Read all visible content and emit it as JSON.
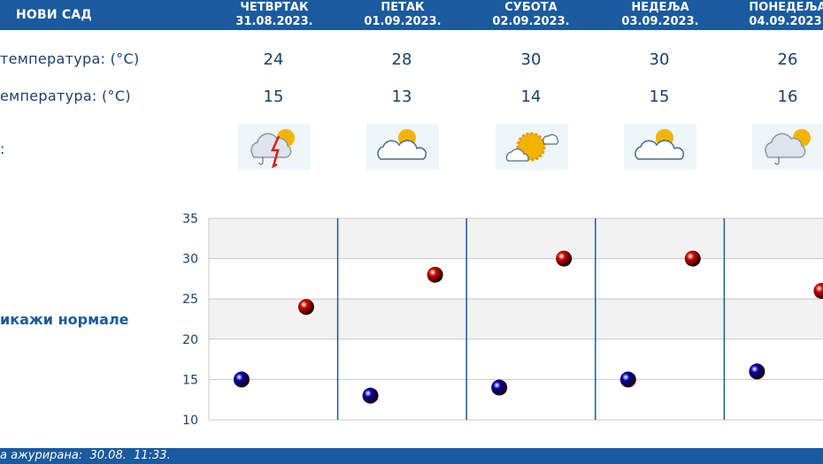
{
  "header": {
    "city": "НОВИ САД",
    "days": [
      {
        "name": "ЧЕТВРТАК",
        "date": "31.08.2023."
      },
      {
        "name": "ПЕТАК",
        "date": "01.09.2023."
      },
      {
        "name": "СУБОТА",
        "date": "02.09.2023."
      },
      {
        "name": "НЕДЕЉА",
        "date": "03.09.2023."
      },
      {
        "name": "ПОНЕДЕЉА",
        "date": "04.09.2023."
      }
    ]
  },
  "rows": {
    "max_label": "температура: (°C)",
    "min_label": "емпература: (°C)",
    "icon_label": ":"
  },
  "icons": [
    "storm-cloud-sun-icon",
    "sun-cloud-icon",
    "sun-icon",
    "sun-cloud-icon",
    "rain-cloud-sun-icon"
  ],
  "normals_label": "икажи нормале",
  "footer": {
    "updated_label": "а ажурирана:",
    "updated_value": "30.08.  11:33."
  },
  "colors": {
    "header_bg": "#1a5a9e",
    "text": "#1a3f6e",
    "max_point": "#cc0000",
    "min_point": "#0000aa",
    "band": "#f2f2f2"
  },
  "chart_data": {
    "type": "scatter",
    "categories": [
      "31.08.2023.",
      "01.09.2023.",
      "02.09.2023.",
      "03.09.2023.",
      "04.09.2023."
    ],
    "series": [
      {
        "values": [
          24,
          28,
          30,
          30,
          26
        ],
        "color": "#cc0000"
      },
      {
        "values": [
          15,
          13,
          14,
          15,
          16
        ],
        "color": "#0000aa"
      }
    ],
    "y_ticks": [
      35,
      30,
      25,
      20,
      15,
      10
    ],
    "ylim": [
      10,
      35
    ],
    "grid": true
  }
}
